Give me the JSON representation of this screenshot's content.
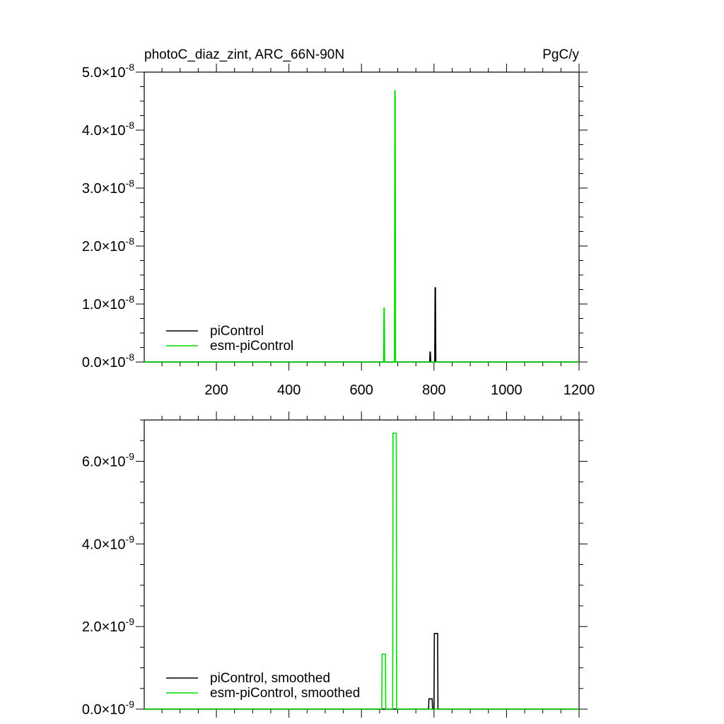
{
  "figure": {
    "title_left": "photoC_diaz_zint, ARC_66N-90N",
    "title_right": "PgC/y"
  },
  "chart_data": [
    {
      "type": "line",
      "title": "photoC_diaz_zint, ARC_66N-90N",
      "units": "PgC/y",
      "xlim": [
        1,
        1200
      ],
      "ylim": [
        0,
        5e-08
      ],
      "x_ticks": [
        200,
        400,
        600,
        800,
        1000,
        1200
      ],
      "x_tick_labels": [
        "200",
        "400",
        "600",
        "800",
        "1000",
        "1200"
      ],
      "y_ticks": [
        0,
        1e-08,
        2e-08,
        3e-08,
        4e-08,
        5e-08
      ],
      "y_tick_labels": [
        {
          "mantissa": "0.0",
          "times": "×10",
          "exp": "-8"
        },
        {
          "mantissa": "1.0",
          "times": "×10",
          "exp": "-8"
        },
        {
          "mantissa": "2.0",
          "times": "×10",
          "exp": "-8"
        },
        {
          "mantissa": "3.0",
          "times": "×10",
          "exp": "-8"
        },
        {
          "mantissa": "4.0",
          "times": "×10",
          "exp": "-8"
        },
        {
          "mantissa": "5.0",
          "times": "×10",
          "exp": "-8"
        }
      ],
      "legend_position": "bottom-left",
      "series": [
        {
          "name": "piControl",
          "color": "#000000",
          "x": [
            1,
            788,
            789,
            790,
            791,
            802,
            803,
            804,
            805,
            1200
          ],
          "y": [
            0,
            0,
            1.7e-09,
            1.7e-09,
            0,
            0,
            1.28e-08,
            1.28e-08,
            0,
            0
          ]
        },
        {
          "name": "esm-piControl",
          "color": "#00dd00",
          "x": [
            1,
            661,
            662,
            663,
            664,
            691,
            692,
            693,
            694,
            1200
          ],
          "y": [
            0,
            0,
            9.3e-09,
            9.3e-09,
            0,
            0,
            4.68e-08,
            4.68e-08,
            0,
            0
          ]
        }
      ]
    },
    {
      "type": "line",
      "xlim": [
        1,
        1200
      ],
      "ylim": [
        0,
        7e-09
      ],
      "x_ticks": [
        200,
        400,
        600,
        800,
        1000,
        1200
      ],
      "x_tick_labels": [],
      "y_ticks": [
        0,
        2e-09,
        4e-09,
        6e-09
      ],
      "y_tick_labels": [
        {
          "mantissa": "0.0",
          "times": "×10",
          "exp": "-9"
        },
        {
          "mantissa": "2.0",
          "times": "×10",
          "exp": "-9"
        },
        {
          "mantissa": "4.0",
          "times": "×10",
          "exp": "-9"
        },
        {
          "mantissa": "6.0",
          "times": "×10",
          "exp": "-9"
        }
      ],
      "legend_position": "bottom-left",
      "series": [
        {
          "name": "piControl, smoothed",
          "color": "#000000",
          "x": [
            1,
            785,
            786,
            795,
            796,
            800,
            801,
            810,
            811,
            1200
          ],
          "y": [
            0,
            0,
            2.5e-10,
            2.5e-10,
            0,
            0,
            1.83e-09,
            1.83e-09,
            0,
            0
          ]
        },
        {
          "name": "esm-piControl, smoothed",
          "color": "#00dd00",
          "x": [
            1,
            656,
            657,
            666,
            667,
            686,
            687,
            696,
            697,
            1200
          ],
          "y": [
            0,
            0,
            1.33e-09,
            1.33e-09,
            0,
            0,
            6.68e-09,
            6.68e-09,
            0,
            0
          ]
        }
      ]
    }
  ]
}
